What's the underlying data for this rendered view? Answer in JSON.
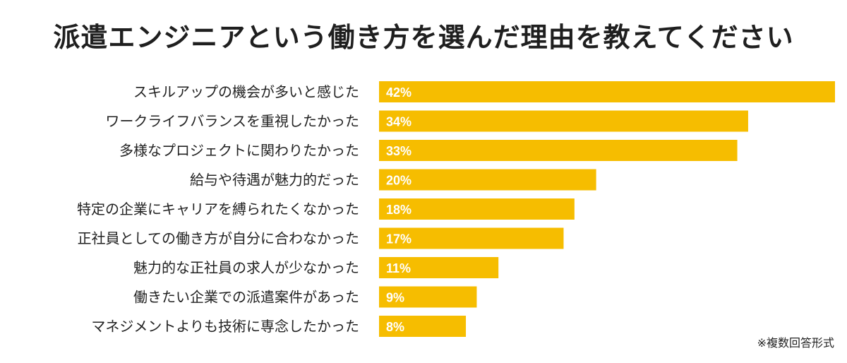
{
  "chart_data": {
    "type": "bar",
    "orientation": "horizontal",
    "title": "派遣エンジニアという働き方を選んだ理由を教えてください",
    "categories": [
      "スキルアップの機会が多いと感じた",
      "ワークライフバランスを重視したかった",
      "多様なプロジェクトに関わりたかった",
      "給与や待遇が魅力的だった",
      "特定の企業にキャリアを縛られたくなかった",
      "正社員としての働き方が自分に合わなかった",
      "魅力的な正社員の求人が少なかった",
      "働きたい企業での派遣案件があった",
      "マネジメントよりも技術に専念したかった"
    ],
    "values": [
      42,
      34,
      33,
      20,
      18,
      17,
      11,
      9,
      8
    ],
    "value_labels": [
      "42%",
      "34%",
      "33%",
      "20%",
      "18%",
      "17%",
      "11%",
      "9%",
      "8%"
    ],
    "xlim": [
      0,
      42
    ],
    "grid": false,
    "legend": "none",
    "bar_color": "#F6BD00",
    "value_label_color": "#ffffff",
    "footnote": "※複数回答形式"
  }
}
